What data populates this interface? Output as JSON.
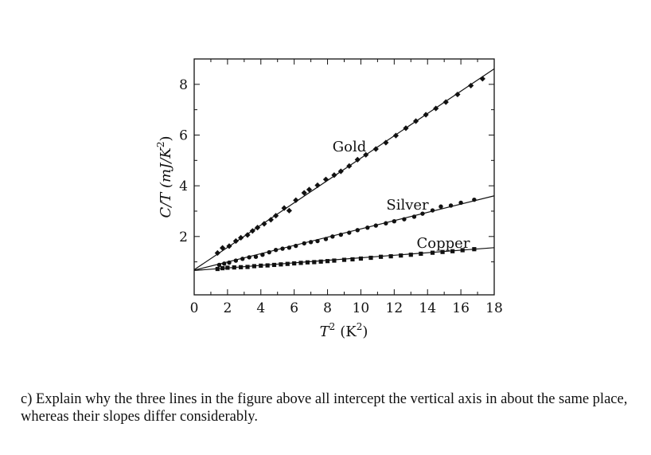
{
  "chart_data": {
    "type": "scatter",
    "xlabel": {
      "symbol": "T",
      "exp": "2",
      "unit": "(K",
      "unit_exp": "2",
      "close": ")"
    },
    "ylabel": {
      "text": "C/T (mJ/K",
      "exp": "2",
      "close": ")"
    },
    "xlim": [
      0,
      18
    ],
    "ylim": [
      -0.3,
      9.0
    ],
    "xticks": [
      0,
      2,
      4,
      6,
      8,
      10,
      12,
      14,
      16,
      18
    ],
    "yticks": [
      2,
      4,
      6,
      8
    ],
    "grid": false,
    "series": [
      {
        "name": "Gold",
        "marker": "diamond",
        "fit": {
          "intercept": 0.69,
          "slope": 0.44
        },
        "x": [
          1.4,
          1.7,
          2.1,
          2.5,
          2.8,
          3.2,
          3.5,
          3.8,
          4.2,
          4.6,
          4.9,
          5.4,
          5.7,
          6.1,
          6.6,
          6.9,
          7.4,
          7.9,
          8.4,
          8.8,
          9.3,
          9.8,
          10.3,
          10.9,
          11.5,
          12.1,
          12.7,
          13.3,
          13.9,
          14.5,
          15.1,
          15.8,
          16.6,
          17.3
        ],
        "y": [
          1.35,
          1.55,
          1.62,
          1.82,
          1.95,
          2.06,
          2.22,
          2.35,
          2.5,
          2.66,
          2.82,
          3.12,
          3.02,
          3.43,
          3.72,
          3.85,
          4.02,
          4.25,
          4.42,
          4.57,
          4.78,
          5.03,
          5.22,
          5.45,
          5.7,
          5.98,
          6.27,
          6.55,
          6.8,
          7.05,
          7.3,
          7.6,
          7.95,
          8.22
        ]
      },
      {
        "name": "Silver",
        "marker": "circle",
        "fit": {
          "intercept": 0.67,
          "slope": 0.163
        },
        "x": [
          1.5,
          1.8,
          2.1,
          2.5,
          2.9,
          3.3,
          3.7,
          4.1,
          4.5,
          4.9,
          5.3,
          5.7,
          6.1,
          6.6,
          7.0,
          7.4,
          7.9,
          8.3,
          8.8,
          9.3,
          9.8,
          10.4,
          10.9,
          11.5,
          12.0,
          12.6,
          13.2,
          13.7,
          14.3,
          14.8,
          15.4,
          16.0,
          16.8
        ],
        "y": [
          0.88,
          0.93,
          0.97,
          1.05,
          1.12,
          1.18,
          1.2,
          1.28,
          1.38,
          1.47,
          1.52,
          1.56,
          1.63,
          1.73,
          1.78,
          1.82,
          1.9,
          2.0,
          2.07,
          2.15,
          2.25,
          2.35,
          2.43,
          2.52,
          2.6,
          2.68,
          2.78,
          2.9,
          3.03,
          3.18,
          3.22,
          3.33,
          3.45
        ]
      },
      {
        "name": "Copper",
        "marker": "square",
        "fit": {
          "intercept": 0.66,
          "slope": 0.05
        },
        "x": [
          1.4,
          1.7,
          2.0,
          2.4,
          2.8,
          3.2,
          3.6,
          4.0,
          4.4,
          4.8,
          5.2,
          5.6,
          6.0,
          6.4,
          6.8,
          7.2,
          7.6,
          8.0,
          8.4,
          9.0,
          9.5,
          10.0,
          10.6,
          11.2,
          11.8,
          12.4,
          13.0,
          13.6,
          14.3,
          14.9,
          15.5,
          16.1,
          16.8
        ],
        "y": [
          0.72,
          0.75,
          0.77,
          0.78,
          0.79,
          0.8,
          0.83,
          0.85,
          0.86,
          0.88,
          0.9,
          0.92,
          0.94,
          0.96,
          0.98,
          0.99,
          1.01,
          1.03,
          1.05,
          1.08,
          1.1,
          1.13,
          1.16,
          1.2,
          1.22,
          1.25,
          1.28,
          1.32,
          1.36,
          1.39,
          1.42,
          1.46,
          1.5
        ]
      }
    ]
  },
  "question": "c) Explain why the three lines in the figure above all intercept the vertical axis in about the same place, whereas their slopes differ considerably."
}
